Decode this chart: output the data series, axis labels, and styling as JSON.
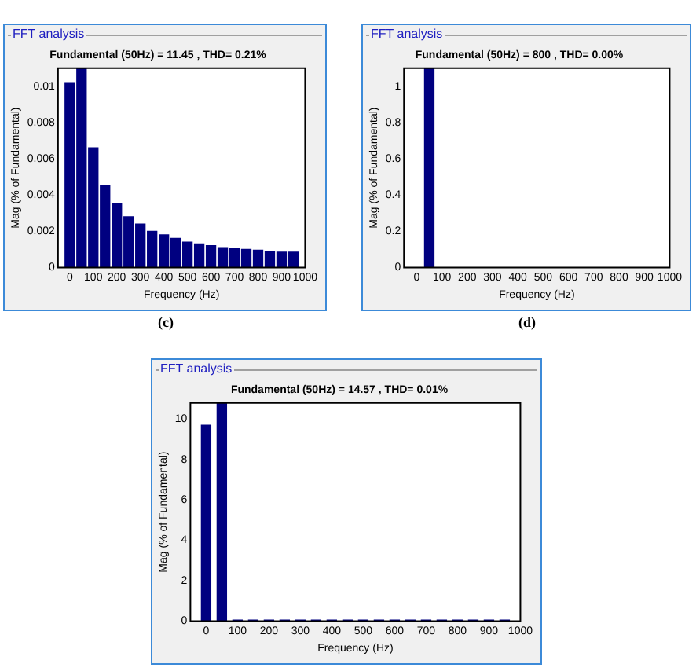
{
  "chart_data": [
    {
      "type": "bar",
      "title": "FFT analysis",
      "subtitle": "Fundamental (50Hz) = 11.45 , THD= 0.21%",
      "xlabel": "Frequency (Hz)",
      "ylabel": "Mag (% of Fundamental)",
      "x": [
        0,
        50,
        100,
        150,
        200,
        250,
        300,
        350,
        400,
        450,
        500,
        550,
        600,
        650,
        700,
        750,
        800,
        850,
        900,
        950
      ],
      "values": [
        0.0102,
        0.011,
        0.0066,
        0.0045,
        0.0035,
        0.0028,
        0.0024,
        0.002,
        0.0018,
        0.0016,
        0.0014,
        0.0013,
        0.0012,
        0.0011,
        0.00105,
        0.001,
        0.00095,
        0.0009,
        0.00085,
        0.00085
      ],
      "color": "#000080",
      "xlim": [
        -50,
        1000
      ],
      "ylim": [
        0,
        0.011
      ],
      "xticks": [
        0,
        100,
        200,
        300,
        400,
        500,
        600,
        700,
        800,
        900,
        1000
      ],
      "yticks": [
        0,
        0.002,
        0.004,
        0.006,
        0.008,
        0.01
      ],
      "annotations": [
        "(c)"
      ]
    },
    {
      "type": "bar",
      "title": "FFT analysis",
      "subtitle": "Fundamental (50Hz) = 800 , THD= 0.00%",
      "xlabel": "Frequency (Hz)",
      "ylabel": "Mag (% of Fundamental)",
      "x": [
        50
      ],
      "values": [
        1.1
      ],
      "color": "#000080",
      "xlim": [
        -50,
        1000
      ],
      "ylim": [
        0,
        1.1
      ],
      "xticks": [
        0,
        100,
        200,
        300,
        400,
        500,
        600,
        700,
        800,
        900,
        1000
      ],
      "yticks": [
        0,
        0.2,
        0.4,
        0.6,
        0.8,
        1
      ],
      "annotations": [
        "(d)"
      ]
    },
    {
      "type": "bar",
      "title": "FFT analysis",
      "subtitle": "Fundamental (50Hz) = 14.57 , THD= 0.01%",
      "xlabel": "Frequency (Hz)",
      "ylabel": "Mag (% of Fundamental)",
      "x": [
        0,
        50,
        100,
        150,
        200,
        250,
        300,
        350,
        400,
        450,
        500,
        550,
        600,
        650,
        700,
        750,
        800,
        850,
        900,
        950
      ],
      "values": [
        9.7,
        10.8,
        0.05,
        0.05,
        0.05,
        0.05,
        0.05,
        0.05,
        0.05,
        0.05,
        0.05,
        0.05,
        0.05,
        0.05,
        0.05,
        0.05,
        0.05,
        0.05,
        0.05,
        0.05
      ],
      "color": "#000080",
      "xlim": [
        -50,
        1000
      ],
      "ylim": [
        0,
        10.8
      ],
      "xticks": [
        0,
        100,
        200,
        300,
        400,
        500,
        600,
        700,
        800,
        900,
        1000
      ],
      "yticks": [
        0,
        2,
        4,
        6,
        8,
        10
      ]
    }
  ]
}
